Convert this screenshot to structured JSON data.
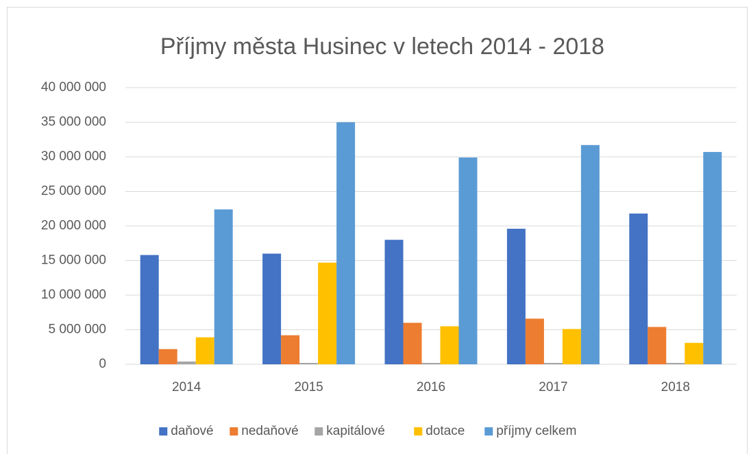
{
  "chart_data": {
    "type": "bar",
    "title": "Příjmy města Husinec v letech 2014 - 2018",
    "categories": [
      "2014",
      "2015",
      "2016",
      "2017",
      "2018"
    ],
    "series": [
      {
        "name": "daňové",
        "color": "#4472c4",
        "values": [
          15800000,
          16000000,
          18000000,
          19600000,
          21800000
        ]
      },
      {
        "name": "nedaňové",
        "color": "#ed7d31",
        "values": [
          2200000,
          4200000,
          6000000,
          6600000,
          5400000
        ]
      },
      {
        "name": "kapitálové",
        "color": "#a5a5a5",
        "values": [
          400000,
          200000,
          200000,
          200000,
          200000
        ]
      },
      {
        "name": "dotace",
        "color": "#ffc000",
        "values": [
          3900000,
          14700000,
          5500000,
          5100000,
          3100000
        ]
      },
      {
        "name": "příjmy celkem",
        "color": "#5b9bd5",
        "values": [
          22400000,
          35000000,
          29900000,
          31700000,
          30700000
        ]
      }
    ],
    "ylim": [
      0,
      40000000
    ],
    "yticks": [
      0,
      {
        "value": 5000000,
        "label": "5 000 000"
      },
      {
        "value": 10000000,
        "label": "10 000 000"
      },
      {
        "value": 15000000,
        "label": "15 000 000"
      },
      {
        "value": 20000000,
        "label": "20 000 000"
      },
      {
        "value": 25000000,
        "label": "25 000 000"
      },
      {
        "value": 30000000,
        "label": "30 000 000"
      },
      {
        "value": 35000000,
        "label": "35 000 000"
      },
      {
        "value": 40000000,
        "label": "40 000 000"
      }
    ],
    "grid": true,
    "legend": "bottom"
  }
}
